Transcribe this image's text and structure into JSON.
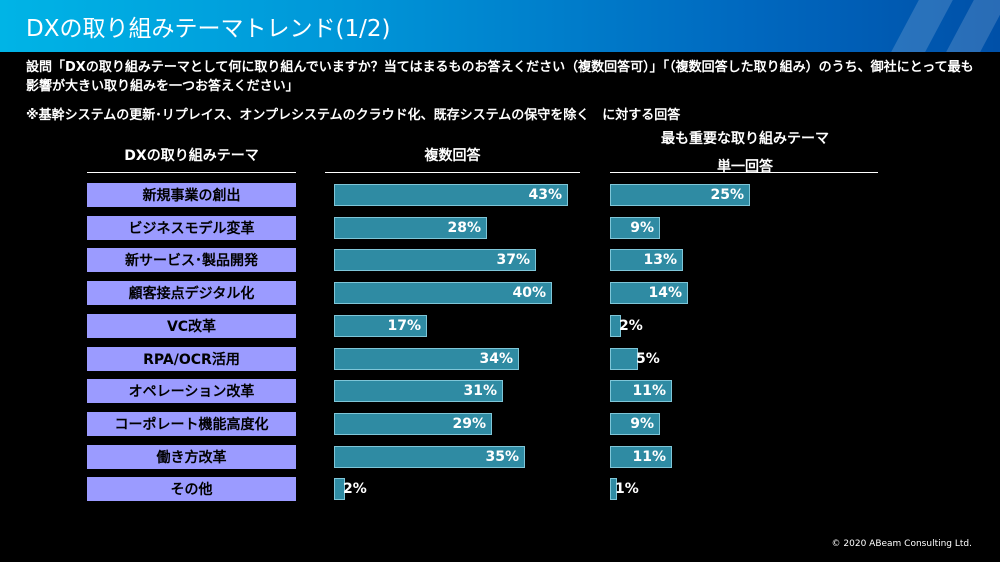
{
  "title": "DXの取り組みテーマトレンド(1/2)",
  "question": "設問「DXの取り組みテーマとして何に取り組んでいますか？当てはまるものお答えください（複数回答可）」「（複数回答した取り組み）のうち、御社にとって最も影響が大きい取り組みを一つお答えください」",
  "note": "※基幹システムの更新･リプレイス、オンプレシステムのクラウド化、既存システムの保守を除く　に対する回答",
  "copyright": "© 2020 ABeam Consulting Ltd.",
  "colors": {
    "title_bar": "#0096d8",
    "category_box": "#9b9bff",
    "bar": "#2f8ba3",
    "bar_border": "#7fc6d8"
  },
  "chart_data": {
    "type": "bar",
    "orientation": "horizontal",
    "category_header": "DXの取り組みテーマ",
    "categories": [
      "新規事業の創出",
      "ビジネスモデル変革",
      "新サービス･製品開発",
      "顧客接点デジタル化",
      "VC改革",
      "RPA/OCR活用",
      "オペレーション改革",
      "コーポレート機能高度化",
      "働き方改革",
      "その他"
    ],
    "series": [
      {
        "name": "複数回答",
        "values": [
          43,
          28,
          37,
          40,
          17,
          34,
          31,
          29,
          35,
          2
        ],
        "labels": [
          "43%",
          "28%",
          "37%",
          "40%",
          "17%",
          "34%",
          "31%",
          "29%",
          "35%",
          "2%"
        ]
      },
      {
        "name": "最も重要な取り組みテーマ",
        "subtitle": "単一回答",
        "values": [
          25,
          9,
          13,
          14,
          2,
          5,
          11,
          9,
          11,
          1
        ],
        "labels": [
          "25%",
          "9%",
          "13%",
          "14%",
          "2%",
          "5%",
          "11%",
          "9%",
          "11%",
          "1%"
        ]
      }
    ]
  }
}
